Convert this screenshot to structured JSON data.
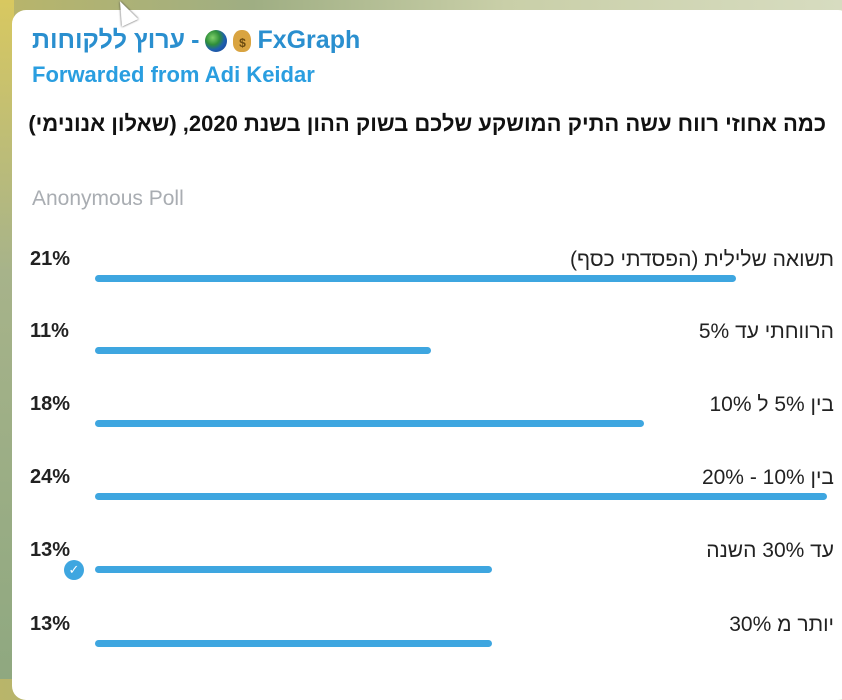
{
  "message": {
    "channel_name": "ערוץ ללקוחות",
    "separator": "-",
    "brand": "FxGraph",
    "emoji_icons": [
      "globe-icon",
      "money-bag-icon"
    ],
    "forwarded_from": "Forwarded from Adi Keidar",
    "question": "כמה אחוזי רווח עשה התיק המושקע שלכם בשוק ההון בשנת 2020, (שאלון אנונימי)",
    "poll_type": "Anonymous Poll"
  },
  "poll": {
    "accent_color": "#3ea6e0",
    "options": [
      {
        "label": "תשואה שלילית (הפסדתי כסף)",
        "percent_text": "21%",
        "percent": 21,
        "chosen": false
      },
      {
        "label": "הרווחתי עד 5%",
        "percent_text": "11%",
        "percent": 11,
        "chosen": false
      },
      {
        "label": "בין 5% ל 10%",
        "percent_text": "18%",
        "percent": 18,
        "chosen": false
      },
      {
        "label": "בין 10% - 20%",
        "percent_text": "24%",
        "percent": 24,
        "chosen": false
      },
      {
        "label": "עד 30% השנה",
        "percent_text": "13%",
        "percent": 13,
        "chosen": true
      },
      {
        "label": "יותר מ 30%",
        "percent_text": "13%",
        "percent": 13,
        "chosen": false
      }
    ]
  }
}
